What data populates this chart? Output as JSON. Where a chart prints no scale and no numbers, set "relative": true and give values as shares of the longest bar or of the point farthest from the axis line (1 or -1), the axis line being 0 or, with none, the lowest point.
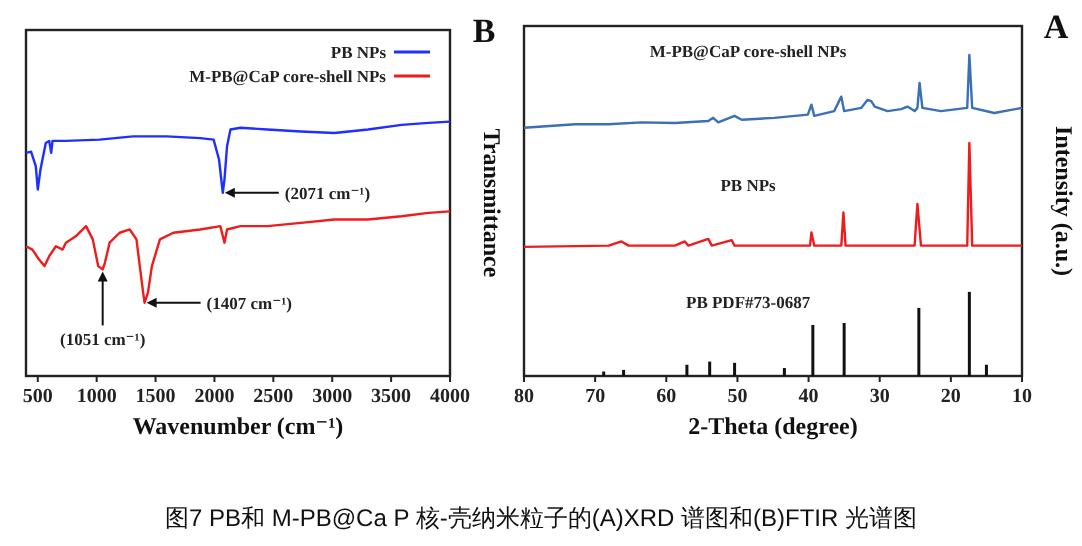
{
  "chart_data": [
    {
      "type": "line",
      "title": "B",
      "xlabel": "Wavenumber (cm⁻¹)",
      "ylabel": "Transmittance",
      "relative": true,
      "xlim": [
        400,
        4000
      ],
      "xticks": [
        500,
        1000,
        1500,
        2000,
        2500,
        3000,
        3500,
        4000
      ],
      "legend": "top right",
      "series": [
        {
          "name": "PB NPs",
          "color": "#1f2fff",
          "x": [
            400,
            443,
            483,
            500,
            523,
            568,
            597,
            614,
            625,
            739,
            1024,
            1309,
            1594,
            1879,
            1993,
            2039,
            2071,
            2085,
            2107,
            2136,
            2221,
            2449,
            2734,
            3019,
            3304,
            3589,
            3817,
            4000
          ],
          "values": [
            0.877,
            0.882,
            0.825,
            0.733,
            0.812,
            0.916,
            0.924,
            0.877,
            0.924,
            0.924,
            0.929,
            0.942,
            0.942,
            0.935,
            0.929,
            0.851,
            0.72,
            0.772,
            0.903,
            0.969,
            0.976,
            0.969,
            0.961,
            0.955,
            0.969,
            0.987,
            0.995,
            1.0
          ]
        },
        {
          "name": "M-PB@CaP core-shell NPs",
          "color": "#ee1c1c",
          "x": [
            400,
            454,
            511,
            557,
            597,
            654,
            711,
            739,
            825,
            910,
            967,
            1013,
            1051,
            1070,
            1110,
            1195,
            1281,
            1338,
            1366,
            1395,
            1407,
            1435,
            1469,
            1537,
            1651,
            1879,
            2050,
            2085,
            2107,
            2221,
            2449,
            2734,
            3019,
            3304,
            3589,
            3817,
            4000
          ],
          "values": [
            0.51,
            0.497,
            0.458,
            0.432,
            0.471,
            0.51,
            0.497,
            0.524,
            0.55,
            0.589,
            0.537,
            0.432,
            0.419,
            0.445,
            0.524,
            0.563,
            0.576,
            0.537,
            0.432,
            0.327,
            0.288,
            0.327,
            0.432,
            0.537,
            0.563,
            0.576,
            0.589,
            0.524,
            0.576,
            0.589,
            0.589,
            0.602,
            0.615,
            0.615,
            0.628,
            0.641,
            0.647
          ]
        }
      ],
      "annotations": [
        {
          "text": "(2071 cm⁻¹)",
          "x": 2071,
          "y": 0.72
        },
        {
          "text": "(1407 cm⁻¹)",
          "x": 1407,
          "y": 0.288
        },
        {
          "text": "(1051 cm⁻¹)",
          "x": 1051,
          "y": 0.419
        },
        "图7 PB和 M-PB@Ca P 核-壳纳米粒子的(A)XRD 谱图和(B)FTIR 光谱图"
      ]
    },
    {
      "type": "line",
      "title": "A",
      "xlabel": "2-Theta (degree)",
      "ylabel": "Intensity (a.u.)",
      "relative": true,
      "xlim": [
        80,
        10
      ],
      "xticks": [
        80,
        70,
        60,
        50,
        40,
        30,
        20,
        10
      ],
      "series": [
        {
          "name": "M-PB@CaP core-shell NPs",
          "color": "#3b6fb6",
          "x": [
            80,
            72.8,
            68.1,
            63.5,
            58.8,
            54.1,
            53.4,
            52.7,
            50.4,
            49.4,
            44.8,
            40.1,
            39.6,
            39.2,
            36.4,
            35.4,
            35.0,
            32.6,
            31.7,
            31.2,
            30.7,
            28.9,
            27.0,
            26.1,
            25.1,
            24.7,
            24.4,
            24.0,
            21.4,
            17.7,
            17.4,
            17.0,
            13.9,
            10.0
          ],
          "values": [
            0.773,
            0.784,
            0.784,
            0.79,
            0.788,
            0.794,
            0.804,
            0.79,
            0.81,
            0.798,
            0.804,
            0.814,
            0.845,
            0.81,
            0.825,
            0.87,
            0.825,
            0.835,
            0.86,
            0.856,
            0.839,
            0.825,
            0.831,
            0.839,
            0.825,
            0.835,
            0.913,
            0.835,
            0.825,
            0.835,
            1.0,
            0.835,
            0.819,
            0.835
          ]
        },
        {
          "name": "PB NPs",
          "color": "#ee1c1c",
          "x": [
            80,
            68.1,
            66.3,
            65.3,
            58.8,
            57.4,
            56.9,
            54.1,
            53.6,
            50.8,
            50.4,
            44.8,
            39.8,
            39.6,
            39.2,
            35.4,
            35.1,
            34.8,
            25.1,
            24.7,
            24.2,
            17.7,
            17.4,
            17.0,
            10.0
          ],
          "values": [
            0.402,
            0.406,
            0.419,
            0.406,
            0.406,
            0.419,
            0.406,
            0.427,
            0.406,
            0.423,
            0.406,
            0.406,
            0.406,
            0.447,
            0.406,
            0.406,
            0.509,
            0.406,
            0.406,
            0.536,
            0.406,
            0.406,
            0.726,
            0.406,
            0.406
          ]
        },
        {
          "name": "PB PDF#73-0687",
          "type": "bar",
          "color": "#111111",
          "x": [
            68.8,
            66.0,
            57.1,
            53.9,
            50.4,
            43.4,
            39.4,
            35.0,
            24.5,
            17.4,
            15.0
          ],
          "values": [
            0.014,
            0.019,
            0.035,
            0.045,
            0.041,
            0.025,
            0.159,
            0.165,
            0.212,
            0.262,
            0.035
          ]
        }
      ]
    }
  ]
}
